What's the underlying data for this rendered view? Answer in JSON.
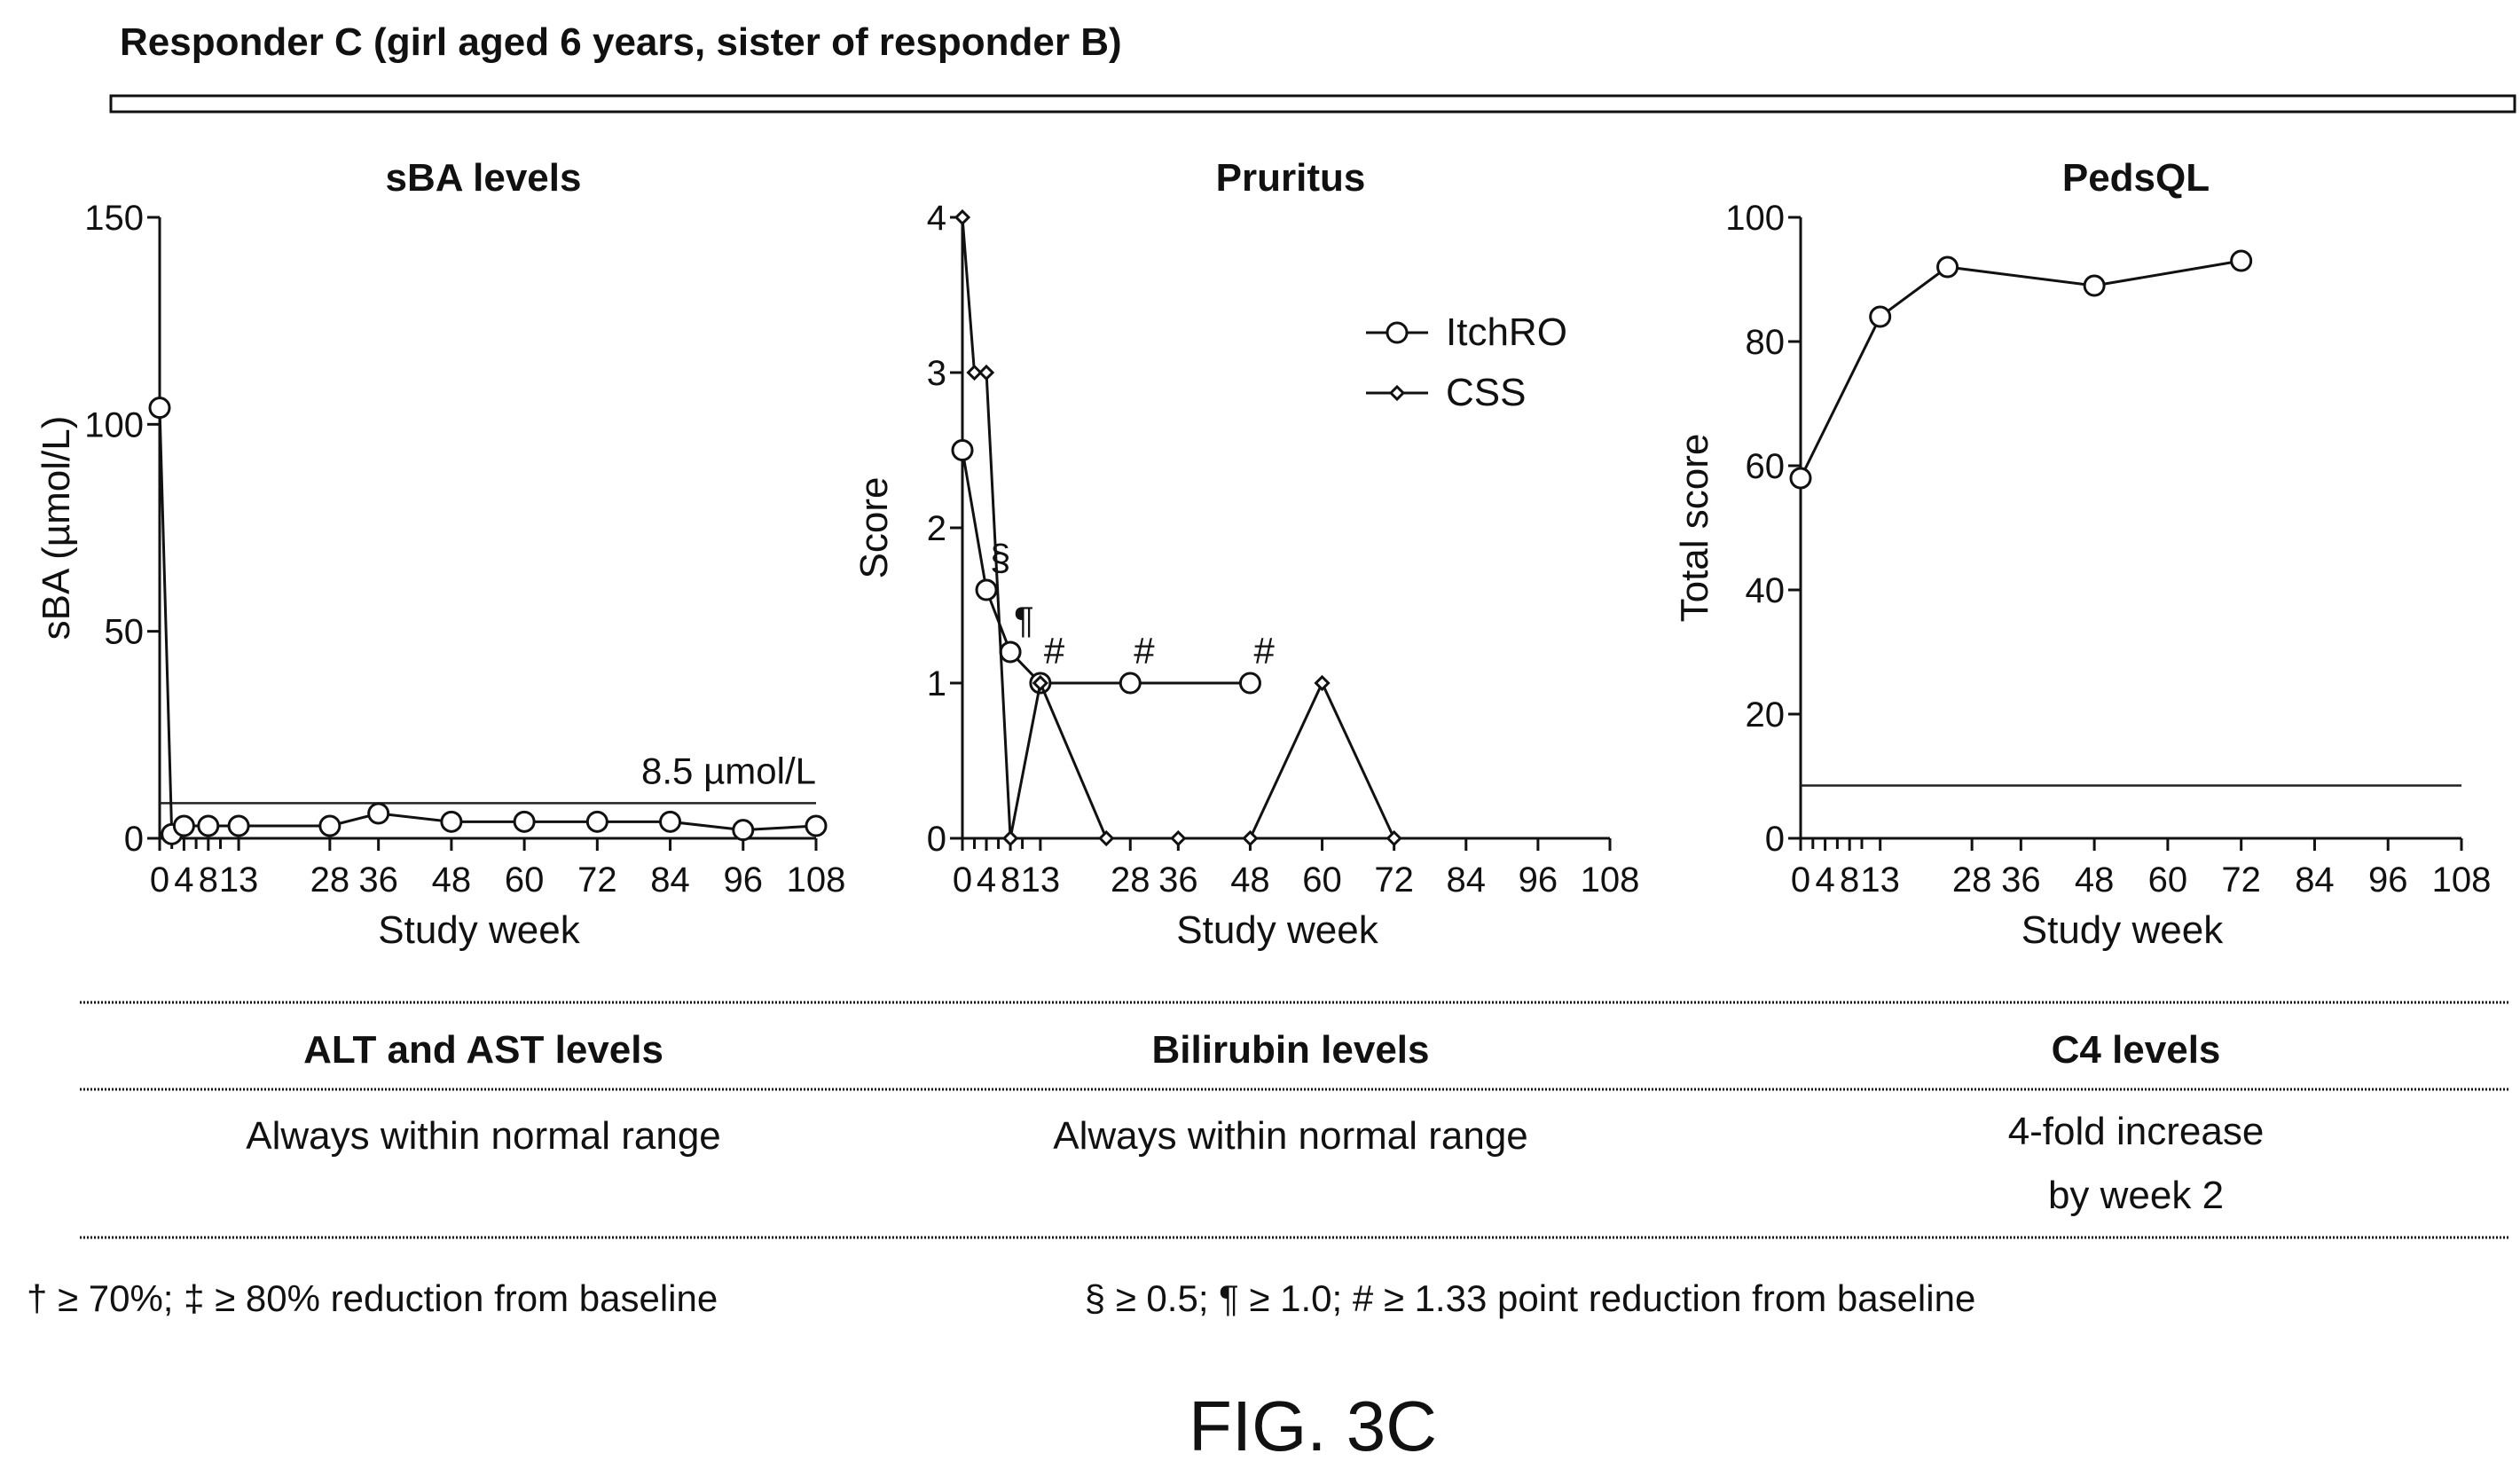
{
  "header": {
    "title": "Responder C (girl aged 6 years, sister of responder B)"
  },
  "chart_data": [
    {
      "type": "line",
      "title": "sBA levels",
      "xlabel": "Study week",
      "ylabel": "sBA (µmol/L)",
      "xlim": [
        0,
        108
      ],
      "ylim": [
        0,
        150
      ],
      "xticks": [
        0,
        4,
        8,
        13,
        28,
        36,
        48,
        60,
        72,
        84,
        96,
        108
      ],
      "yticks": [
        0,
        50,
        100,
        150
      ],
      "reference_line": {
        "y": 8.5,
        "label": "8.5 µmol/L"
      },
      "series": [
        {
          "x": [
            0,
            2,
            4,
            8,
            13,
            28,
            36,
            48,
            60,
            72,
            84,
            96,
            108
          ],
          "values": [
            104,
            1,
            3,
            3,
            3,
            3,
            6,
            4,
            4,
            4,
            4,
            2,
            3
          ]
        }
      ]
    },
    {
      "type": "line",
      "title": "Pruritus",
      "xlabel": "Study week",
      "ylabel": "Score",
      "xlim": [
        0,
        108
      ],
      "ylim": [
        0,
        4
      ],
      "xticks": [
        0,
        4,
        8,
        13,
        28,
        36,
        48,
        60,
        72,
        84,
        96,
        108
      ],
      "yticks": [
        0,
        1,
        2,
        3,
        4
      ],
      "legend_position": "top-right",
      "series": [
        {
          "name": "ItchRO",
          "marker": "circle",
          "x": [
            0,
            4,
            8,
            13,
            28,
            48
          ],
          "values": [
            2.5,
            1.6,
            1.2,
            1.0,
            1.0,
            1.0
          ],
          "annotations": [
            "",
            "§",
            "¶",
            "#",
            "#",
            "#"
          ]
        },
        {
          "name": "CSS",
          "marker": "diamond",
          "x": [
            0,
            2,
            4,
            8,
            13,
            24,
            36,
            48,
            60,
            72
          ],
          "values": [
            4,
            3,
            3,
            0,
            1,
            0,
            0,
            0,
            1,
            0
          ]
        }
      ]
    },
    {
      "type": "line",
      "title": "PedsQL",
      "xlabel": "Study week",
      "ylabel": "Total score",
      "xlim": [
        0,
        108
      ],
      "ylim": [
        0,
        100
      ],
      "xticks": [
        0,
        4,
        8,
        13,
        28,
        36,
        48,
        60,
        72,
        84,
        96,
        108
      ],
      "yticks": [
        0,
        20,
        40,
        60,
        80,
        100
      ],
      "reference_line": {
        "y": 8.5,
        "label": ""
      },
      "series": [
        {
          "x": [
            0,
            13,
            24,
            48,
            72
          ],
          "values": [
            58,
            84,
            92,
            89,
            93
          ]
        }
      ]
    }
  ],
  "table": {
    "columns": [
      {
        "header": "ALT and AST levels",
        "lines": [
          "Always within normal range"
        ]
      },
      {
        "header": "Bilirubin levels",
        "lines": [
          "Always within normal range"
        ]
      },
      {
        "header": "C4 levels",
        "lines": [
          "4-fold increase",
          "by week 2"
        ]
      }
    ]
  },
  "footnotes": {
    "left": "† ≥ 70%; ‡ ≥ 80% reduction from baseline",
    "right": "§ ≥ 0.5; ¶ ≥ 1.0; # ≥ 1.33 point reduction from baseline"
  },
  "figure_label": "FIG. 3C"
}
